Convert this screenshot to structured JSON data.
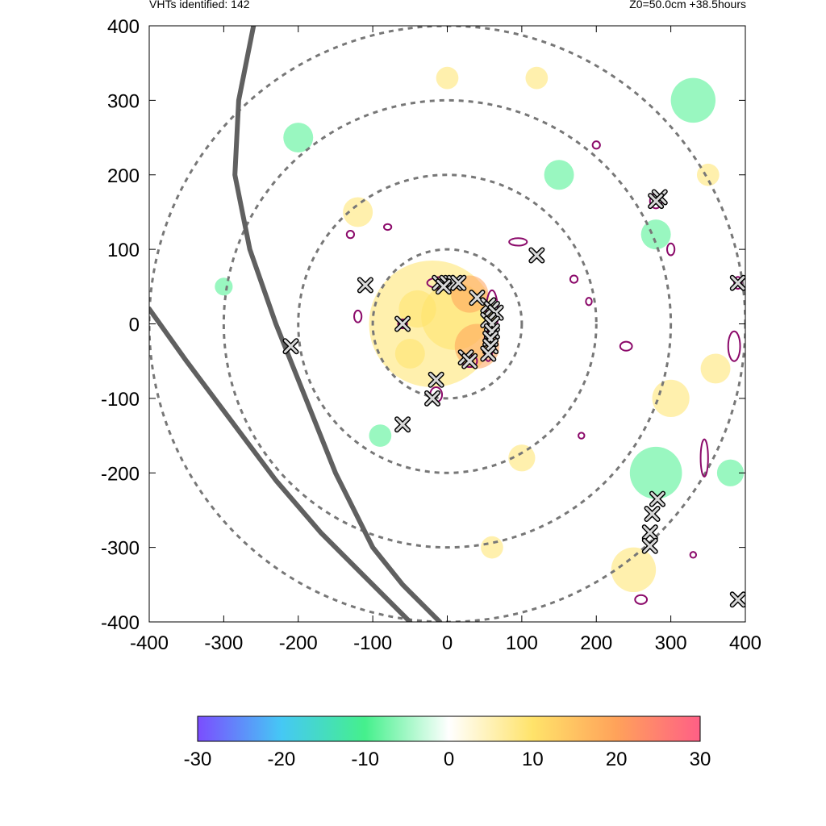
{
  "header": {
    "left_text": "VHTs identified: 142",
    "right_text": "Z0=50.0cm  +38.5hours"
  },
  "chart_data": {
    "type": "heatmap",
    "title": "",
    "xlabel": "",
    "ylabel": "",
    "xlim": [
      -400,
      400
    ],
    "ylim": [
      -400,
      400
    ],
    "x_ticks": [
      -400,
      -300,
      -200,
      -100,
      0,
      100,
      200,
      300,
      400
    ],
    "y_ticks": [
      -400,
      -300,
      -200,
      -100,
      0,
      100,
      200,
      300,
      400
    ],
    "grid": false,
    "range_rings": [
      100,
      200,
      300,
      400
    ],
    "colorbar": {
      "range": [
        -30,
        30
      ],
      "ticks": [
        -30,
        -20,
        -10,
        0,
        10,
        20,
        30
      ],
      "colors": [
        "#7b4dff",
        "#45c8f5",
        "#45f08c",
        "#ffffff",
        "#ffe36a",
        "#ffa25a",
        "#ff5f86"
      ]
    },
    "vht_count": 142,
    "vht_markers": [
      [
        -10,
        55
      ],
      [
        0,
        55
      ],
      [
        10,
        55
      ],
      [
        15,
        55
      ],
      [
        -5,
        50
      ],
      [
        40,
        35
      ],
      [
        55,
        25
      ],
      [
        60,
        20
      ],
      [
        65,
        15
      ],
      [
        55,
        5
      ],
      [
        60,
        0
      ],
      [
        60,
        -10
      ],
      [
        58,
        -20
      ],
      [
        58,
        -30
      ],
      [
        55,
        -40
      ],
      [
        25,
        -45
      ],
      [
        30,
        -50
      ],
      [
        -15,
        -75
      ],
      [
        -20,
        -100
      ],
      [
        -60,
        -135
      ],
      [
        -60,
        0
      ],
      [
        -110,
        52
      ],
      [
        -210,
        -30
      ],
      [
        120,
        92
      ],
      [
        285,
        170
      ],
      [
        280,
        165
      ],
      [
        390,
        55
      ],
      [
        282,
        -235
      ],
      [
        275,
        -255
      ],
      [
        272,
        -280
      ],
      [
        272,
        -298
      ],
      [
        390,
        -370
      ]
    ],
    "tracks": [
      {
        "points": [
          [
            -260,
            400
          ],
          [
            -280,
            300
          ],
          [
            -285,
            200
          ],
          [
            -265,
            100
          ],
          [
            -230,
            0
          ],
          [
            -190,
            -100
          ],
          [
            -150,
            -200
          ],
          [
            -100,
            -300
          ],
          [
            -60,
            -350
          ],
          [
            -10,
            -400
          ]
        ]
      },
      {
        "points": [
          [
            -400,
            20
          ],
          [
            -350,
            -50
          ],
          [
            -290,
            -130
          ],
          [
            -230,
            -210
          ],
          [
            -170,
            -280
          ],
          [
            -110,
            -340
          ],
          [
            -50,
            -400
          ]
        ]
      }
    ],
    "colored_patches": [
      {
        "x": -20,
        "y": 0,
        "r": 85,
        "value": 8
      },
      {
        "x": 10,
        "y": 10,
        "r": 45,
        "value": 14
      },
      {
        "x": 40,
        "y": -30,
        "r": 30,
        "value": 18
      },
      {
        "x": -40,
        "y": 20,
        "r": 25,
        "value": 12
      },
      {
        "x": 30,
        "y": 40,
        "r": 25,
        "value": 20
      },
      {
        "x": -50,
        "y": -40,
        "r": 20,
        "value": 10
      },
      {
        "x": 280,
        "y": -200,
        "r": 35,
        "value": -8
      },
      {
        "x": 300,
        "y": -100,
        "r": 25,
        "value": 10
      },
      {
        "x": 330,
        "y": 300,
        "r": 30,
        "value": -7
      },
      {
        "x": 280,
        "y": 120,
        "r": 20,
        "value": -8
      },
      {
        "x": 250,
        "y": -330,
        "r": 30,
        "value": 9
      },
      {
        "x": 360,
        "y": -60,
        "r": 20,
        "value": 10
      },
      {
        "x": -200,
        "y": 250,
        "r": 20,
        "value": -6
      },
      {
        "x": -120,
        "y": 150,
        "r": 20,
        "value": 7
      },
      {
        "x": 150,
        "y": 200,
        "r": 20,
        "value": -7
      },
      {
        "x": 100,
        "y": -180,
        "r": 18,
        "value": 8
      },
      {
        "x": -300,
        "y": 50,
        "r": 12,
        "value": -8
      },
      {
        "x": 0,
        "y": 330,
        "r": 15,
        "value": 6
      },
      {
        "x": 120,
        "y": 330,
        "r": 15,
        "value": 7
      },
      {
        "x": 380,
        "y": -200,
        "r": 18,
        "value": -8
      },
      {
        "x": 350,
        "y": 200,
        "r": 15,
        "value": 8
      },
      {
        "x": -90,
        "y": -150,
        "r": 15,
        "value": -9
      },
      {
        "x": 60,
        "y": -300,
        "r": 15,
        "value": 7
      }
    ],
    "contours": [
      {
        "x": -5,
        "y": 55,
        "rx": 22,
        "ry": 8
      },
      {
        "x": 60,
        "y": 15,
        "rx": 8,
        "ry": 30
      },
      {
        "x": 55,
        "y": -30,
        "rx": 6,
        "ry": 20
      },
      {
        "x": 30,
        "y": -50,
        "rx": 10,
        "ry": 8
      },
      {
        "x": -15,
        "y": -95,
        "rx": 8,
        "ry": 10
      },
      {
        "x": -60,
        "y": 0,
        "rx": 6,
        "ry": 6
      },
      {
        "x": 95,
        "y": 110,
        "rx": 12,
        "ry": 5
      },
      {
        "x": 280,
        "y": 165,
        "rx": 8,
        "ry": 10
      },
      {
        "x": 390,
        "y": 55,
        "rx": 5,
        "ry": 8
      },
      {
        "x": 385,
        "y": -30,
        "rx": 8,
        "ry": 20
      },
      {
        "x": 345,
        "y": -180,
        "rx": 5,
        "ry": 25
      },
      {
        "x": 240,
        "y": -30,
        "rx": 8,
        "ry": 6
      },
      {
        "x": 170,
        "y": 60,
        "rx": 5,
        "ry": 5
      },
      {
        "x": 190,
        "y": 30,
        "rx": 4,
        "ry": 5
      },
      {
        "x": -120,
        "y": 10,
        "rx": 5,
        "ry": 8
      },
      {
        "x": -130,
        "y": 120,
        "rx": 5,
        "ry": 5
      },
      {
        "x": 300,
        "y": 100,
        "rx": 5,
        "ry": 8
      },
      {
        "x": 260,
        "y": -370,
        "rx": 8,
        "ry": 6
      },
      {
        "x": 330,
        "y": -310,
        "rx": 4,
        "ry": 4
      },
      {
        "x": -80,
        "y": 130,
        "rx": 5,
        "ry": 4
      },
      {
        "x": 200,
        "y": 240,
        "rx": 5,
        "ry": 5
      },
      {
        "x": 180,
        "y": -150,
        "rx": 4,
        "ry": 4
      }
    ]
  }
}
